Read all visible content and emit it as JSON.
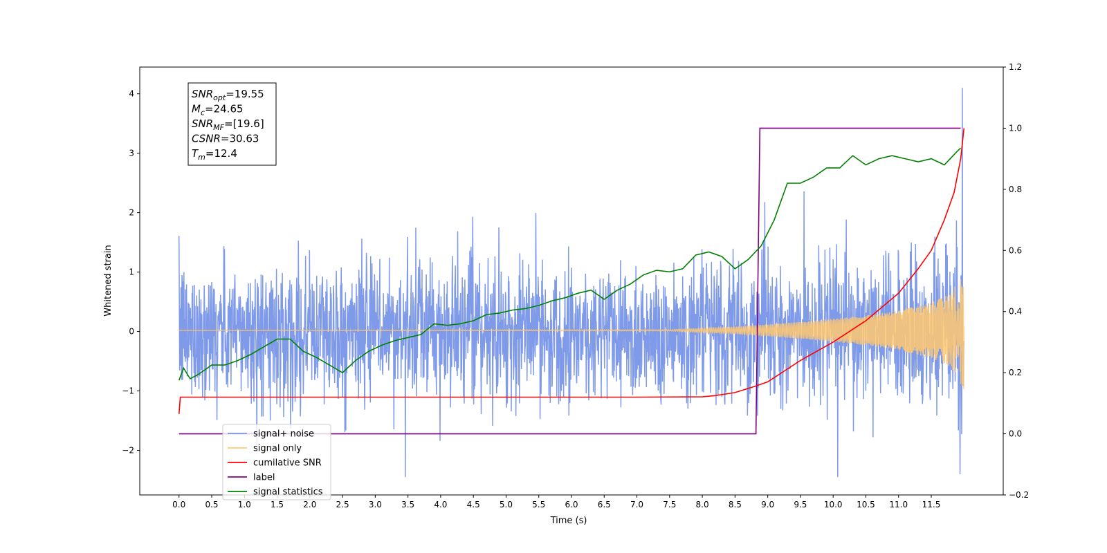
{
  "chart_data": {
    "type": "line",
    "title": "",
    "xlabel": "Time (s)",
    "ylabel": "Whitened strain",
    "xlim": [
      -0.6,
      12.6
    ],
    "ylim": [
      -2.75,
      4.45
    ],
    "y2lim": [
      -0.2,
      1.2
    ],
    "x_ticks": [
      0.0,
      0.5,
      1.0,
      1.5,
      2.0,
      2.5,
      3.0,
      3.5,
      4.0,
      4.5,
      5.0,
      5.5,
      6.0,
      6.5,
      7.0,
      7.5,
      8.0,
      8.5,
      9.0,
      9.5,
      10.0,
      10.5,
      11.0,
      11.5
    ],
    "x_tick_labels": [
      "0.0",
      "0.5",
      "1.0",
      "1.5",
      "2.0",
      "2.5",
      "3.0",
      "3.5",
      "4.0",
      "4.5",
      "5.0",
      "5.5",
      "6.0",
      "6.5",
      "7.0",
      "7.5",
      "8.0",
      "8.5",
      "9.0",
      "9.5",
      "10.0",
      "10.5",
      "11.0",
      "11.5"
    ],
    "y_ticks": [
      -2,
      -1,
      0,
      1,
      2,
      3,
      4
    ],
    "y_tick_labels": [
      "−2",
      "−1",
      "0",
      "1",
      "2",
      "3",
      "4"
    ],
    "y2_ticks": [
      -0.2,
      0.0,
      0.2,
      0.4,
      0.6,
      0.8,
      1.0,
      1.2
    ],
    "y2_tick_labels": [
      "−0.2",
      "0.0",
      "0.2",
      "0.4",
      "0.6",
      "0.8",
      "1.0",
      "1.2"
    ],
    "grid": false,
    "legend_position": "lower-left",
    "legend": [
      {
        "label": "signal+ noise",
        "color": "#7895e8"
      },
      {
        "label": "signal only",
        "color": "#ffc870"
      },
      {
        "label": "cumilative SNR",
        "color": "#ff0000"
      },
      {
        "label": "label",
        "color": "#800080"
      },
      {
        "label": "signal statistics",
        "color": "#008000"
      }
    ],
    "annotations": [
      {
        "sym": "SNR",
        "sub": "opt",
        "value": "=19.55"
      },
      {
        "sym": "M",
        "sub": "c",
        "value": "=24.65"
      },
      {
        "sym": "SNR",
        "sub": "MF",
        "value": "=[19.6]"
      },
      {
        "sym": "CSNR",
        "sub": "",
        "value": "=30.63"
      },
      {
        "sym": "T",
        "sub": "m",
        "value": "=12.4"
      }
    ],
    "series": [
      {
        "name": "signal+ noise",
        "axis": "left",
        "color": "#7895e8",
        "description_points": {
          "x": [
            0.0,
            12.0
          ],
          "noise_band_lower": [
            -1.0,
            -1.0
          ],
          "noise_band_upper": [
            1.0,
            1.0
          ],
          "peak_x": 11.95,
          "peak_y": 4.1,
          "min_y": -2.4
        }
      },
      {
        "name": "signal only",
        "axis": "left",
        "color": "#ffc870",
        "envelope": {
          "x": [
            0.0,
            7.5,
            8.5,
            9.5,
            10.5,
            11.0,
            11.5,
            11.8,
            12.0
          ],
          "amplitude": [
            0.0,
            0.01,
            0.06,
            0.14,
            0.25,
            0.33,
            0.47,
            0.62,
            1.0
          ]
        }
      },
      {
        "name": "cumilative SNR",
        "axis": "right",
        "x": [
          0.0,
          0.02,
          4.0,
          7.0,
          8.0,
          8.2,
          8.5,
          8.8,
          9.0,
          9.5,
          10.0,
          10.5,
          11.0,
          11.3,
          11.5,
          11.7,
          11.85,
          11.95,
          12.0
        ],
        "values": [
          0.065,
          0.12,
          0.12,
          0.12,
          0.121,
          0.125,
          0.135,
          0.155,
          0.17,
          0.24,
          0.3,
          0.37,
          0.46,
          0.54,
          0.6,
          0.7,
          0.79,
          0.9,
          1.0
        ]
      },
      {
        "name": "label",
        "axis": "right",
        "x": [
          0.0,
          8.82,
          8.88,
          11.95
        ],
        "values": [
          0.0,
          0.0,
          1.0,
          1.0
        ]
      },
      {
        "name": "signal statistics",
        "axis": "right",
        "x": [
          0.0,
          0.07,
          0.17,
          0.3,
          0.5,
          0.7,
          0.9,
          1.1,
          1.3,
          1.5,
          1.7,
          1.9,
          2.1,
          2.3,
          2.5,
          2.7,
          2.9,
          3.1,
          3.3,
          3.5,
          3.7,
          3.9,
          4.1,
          4.3,
          4.5,
          4.7,
          4.9,
          5.1,
          5.3,
          5.5,
          5.7,
          5.9,
          6.1,
          6.3,
          6.5,
          6.7,
          6.9,
          7.1,
          7.3,
          7.5,
          7.7,
          7.9,
          8.1,
          8.3,
          8.5,
          8.7,
          8.9,
          9.1,
          9.3,
          9.5,
          9.7,
          9.9,
          10.1,
          10.3,
          10.5,
          10.7,
          10.9,
          11.1,
          11.3,
          11.5,
          11.7,
          11.9,
          11.95
        ],
        "values": [
          0.175,
          0.215,
          0.18,
          0.195,
          0.225,
          0.225,
          0.24,
          0.26,
          0.285,
          0.31,
          0.31,
          0.27,
          0.25,
          0.225,
          0.2,
          0.24,
          0.27,
          0.29,
          0.305,
          0.315,
          0.325,
          0.36,
          0.355,
          0.36,
          0.37,
          0.39,
          0.395,
          0.405,
          0.41,
          0.42,
          0.435,
          0.445,
          0.46,
          0.47,
          0.44,
          0.47,
          0.49,
          0.52,
          0.535,
          0.53,
          0.54,
          0.585,
          0.595,
          0.58,
          0.54,
          0.57,
          0.615,
          0.7,
          0.82,
          0.82,
          0.84,
          0.87,
          0.87,
          0.91,
          0.88,
          0.9,
          0.91,
          0.9,
          0.89,
          0.9,
          0.88,
          0.925,
          0.935
        ]
      }
    ]
  }
}
